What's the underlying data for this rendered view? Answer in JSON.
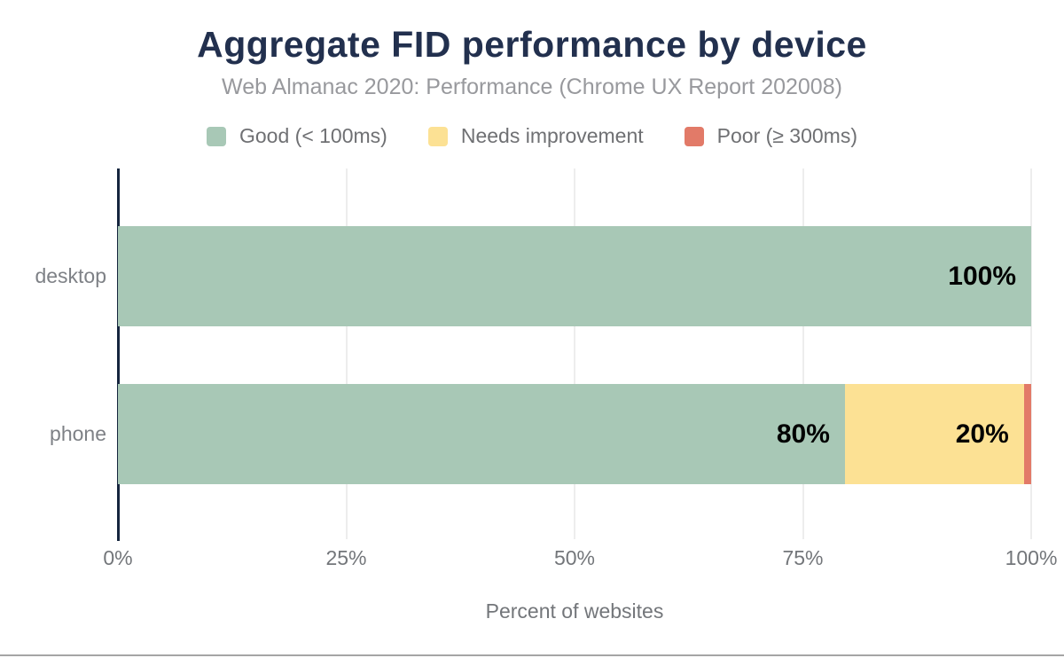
{
  "chart_data": {
    "type": "bar",
    "orientation": "horizontal",
    "stacked": true,
    "title": "Aggregate FID performance by device",
    "subtitle": "Web Almanac 2020: Performance (Chrome UX Report 202008)",
    "categories": [
      "desktop",
      "phone"
    ],
    "series": [
      {
        "name": "Good (< 100ms)",
        "color": "#a8c8b6",
        "values": [
          100,
          80
        ]
      },
      {
        "name": "Needs improvement",
        "color": "#fce194",
        "values": [
          0,
          20
        ]
      },
      {
        "name": "Poor (≥ 300ms)",
        "color": "#e27a68",
        "values": [
          0,
          1
        ]
      }
    ],
    "rows": [
      {
        "category": "desktop",
        "segments": [
          {
            "series": 0,
            "pct": 100,
            "label": "100%"
          }
        ]
      },
      {
        "category": "phone",
        "segments": [
          {
            "series": 0,
            "pct": 79.6,
            "label": "80%"
          },
          {
            "series": 1,
            "pct": 19.6,
            "label": "20%"
          },
          {
            "series": 2,
            "pct": 0.8,
            "label": ""
          }
        ]
      }
    ],
    "xlabel": "Percent of websites",
    "x_ticks": [
      "0%",
      "25%",
      "50%",
      "75%",
      "100%"
    ],
    "xlim": [
      0,
      100
    ],
    "legend_position": "top",
    "grid": "vertical",
    "colors": {
      "title": "#22304e",
      "axis_line": "#16263f",
      "muted_text": "#73767a",
      "bar_label": "#000000"
    }
  }
}
